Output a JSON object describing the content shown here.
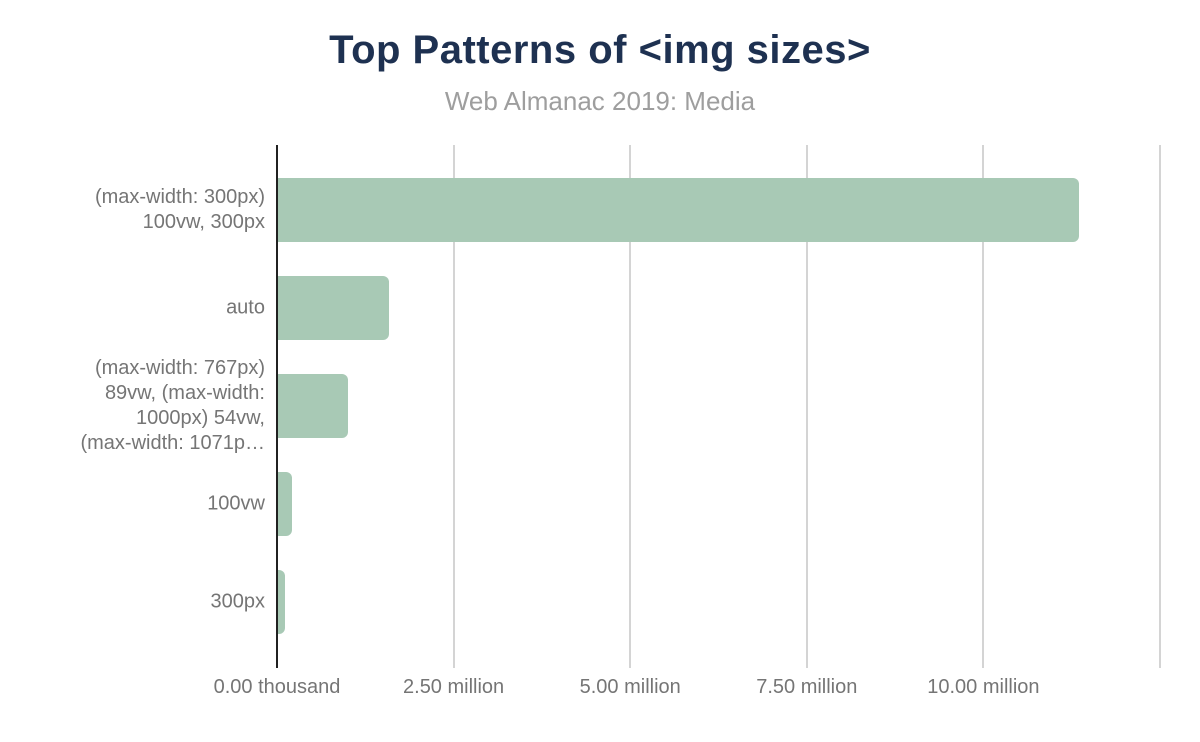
{
  "header": {
    "title": "Top Patterns of <img sizes>",
    "subtitle": "Web Almanac 2019: Media"
  },
  "chart_data": {
    "type": "bar",
    "orientation": "horizontal",
    "title": "Top Patterns of <img sizes>",
    "subtitle": "Web Almanac 2019: Media",
    "categories": [
      "(max-width: 300px)\n100vw, 300px",
      "auto",
      "(max-width: 767px)\n89vw, (max-width:\n1000px) 54vw,\n(max-width: 1071p…",
      "100vw",
      "300px"
    ],
    "values_millions": [
      11.34,
      1.57,
      0.99,
      0.2,
      0.1
    ],
    "x_ticks": [
      {
        "value": 0,
        "label": "0.00 thousand"
      },
      {
        "value": 2.5,
        "label": "2.50 million"
      },
      {
        "value": 5,
        "label": "5.00 million"
      },
      {
        "value": 7.5,
        "label": "7.50 million"
      },
      {
        "value": 10,
        "label": "10.00 million"
      },
      {
        "value": 12.5,
        "label": ""
      }
    ],
    "xlim": [
      0,
      12.5
    ],
    "grid": true,
    "legend": "none",
    "colors": {
      "bar": "#a8c9b5",
      "title": "#1e3151",
      "subtitle": "#9e9e9e",
      "labels": "#757575",
      "grid": "#d4d4d4",
      "axis": "#212121"
    }
  }
}
